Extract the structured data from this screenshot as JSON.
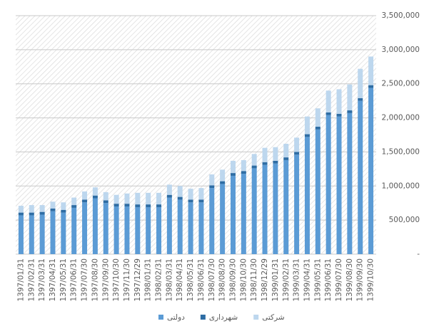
{
  "chart_data": {
    "type": "stacked-bar",
    "categories": [
      "1397/01/31",
      "1397/02/31",
      "1397/03/31",
      "1397/04/31",
      "1397/05/31",
      "1397/06/31",
      "1397/07/30",
      "1397/08/30",
      "1397/09/30",
      "1397/10/30",
      "1397/11/30",
      "1397/12/29",
      "1398/01/31",
      "1398/02/31",
      "1398/03/31",
      "1398/04/31",
      "1398/05/31",
      "1398/06/31",
      "1398/07/30",
      "1398/08/30",
      "1398/09/30",
      "1398/10/30",
      "1398/11/30",
      "1398/12/29",
      "1399/01/31",
      "1399/02/31",
      "1399/03/31",
      "1399/04/31",
      "1399/05/31",
      "1399/06/31",
      "1399/07/30",
      "1399/08/30",
      "1399/09/30",
      "1399/10/30"
    ],
    "series": [
      {
        "name": "دولتی",
        "color": "#5b9bd5",
        "values": [
          570000,
          570000,
          580000,
          630000,
          610000,
          680000,
          760000,
          820000,
          750000,
          700000,
          700000,
          690000,
          690000,
          690000,
          830000,
          800000,
          760000,
          760000,
          970000,
          1030000,
          1150000,
          1180000,
          1260000,
          1310000,
          1330000,
          1380000,
          1460000,
          1720000,
          1830000,
          2040000,
          2020000,
          2070000,
          2250000,
          2440000
        ]
      },
      {
        "name": "شهرداری",
        "color": "#2e6da4",
        "values": [
          40000,
          40000,
          40000,
          40000,
          40000,
          40000,
          40000,
          40000,
          40000,
          40000,
          40000,
          40000,
          40000,
          40000,
          40000,
          40000,
          40000,
          40000,
          40000,
          40000,
          40000,
          40000,
          40000,
          40000,
          40000,
          40000,
          40000,
          40000,
          40000,
          40000,
          40000,
          40000,
          40000,
          40000
        ]
      },
      {
        "name": "شرکتی",
        "color": "#bdd7ee",
        "values": [
          100000,
          110000,
          100000,
          100000,
          110000,
          110000,
          120000,
          120000,
          120000,
          130000,
          150000,
          170000,
          170000,
          170000,
          150000,
          160000,
          160000,
          170000,
          160000,
          170000,
          180000,
          160000,
          170000,
          210000,
          200000,
          200000,
          210000,
          260000,
          270000,
          320000,
          360000,
          380000,
          430000,
          420000
        ]
      }
    ],
    "ylim": [
      0,
      3500000
    ],
    "yticks": [
      {
        "value": 0,
        "label": "-"
      },
      {
        "value": 500000,
        "label": "500,000"
      },
      {
        "value": 1000000,
        "label": "1,000,000"
      },
      {
        "value": 1500000,
        "label": "1,500,000"
      },
      {
        "value": 2000000,
        "label": "2,000,000"
      },
      {
        "value": 2500000,
        "label": "2,500,000"
      },
      {
        "value": 3000000,
        "label": "3,000,000"
      },
      {
        "value": 3500000,
        "label": "3,500,000"
      }
    ],
    "grid": true
  }
}
